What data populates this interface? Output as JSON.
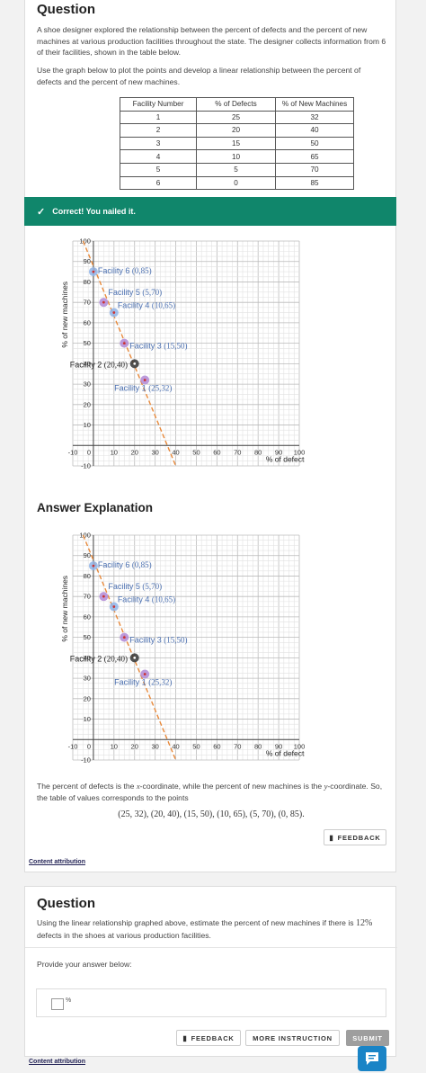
{
  "question1": {
    "heading": "Question",
    "paragraph1": "A shoe designer explored the relationship between the percent of defects and the percent of new machines at various production facilities throughout the state. The designer collects information from 6 of their facilities, shown in the table below.",
    "paragraph2": "Use the graph below to plot the points and develop a linear relationship between the percent of defects and the percent of new machines.",
    "table": {
      "headers": [
        "Facility Number",
        "% of Defects",
        "% of New Machines"
      ],
      "rows": [
        [
          "1",
          "25",
          "32"
        ],
        [
          "2",
          "20",
          "40"
        ],
        [
          "3",
          "15",
          "50"
        ],
        [
          "4",
          "10",
          "65"
        ],
        [
          "5",
          "5",
          "70"
        ],
        [
          "6",
          "0",
          "85"
        ]
      ]
    }
  },
  "banner": {
    "icon": "check-icon",
    "text": "Correct! You nailed it."
  },
  "chart_data": [
    {
      "type": "scatter",
      "xlabel": "% of defects",
      "ylabel": "% of new machines",
      "xlim": [
        -10,
        100
      ],
      "ylim": [
        -10,
        100
      ],
      "xticks": [
        -10,
        0,
        10,
        20,
        30,
        40,
        50,
        60,
        70,
        80,
        90,
        100
      ],
      "yticks": [
        -10,
        10,
        20,
        30,
        40,
        50,
        60,
        70,
        80,
        90,
        100
      ],
      "grid": true,
      "points": [
        {
          "label": "Facility 6",
          "coord": "(0,85)",
          "x": 0,
          "y": 85
        },
        {
          "label": "Facility 5",
          "coord": "(5,70)",
          "x": 5,
          "y": 70
        },
        {
          "label": "Facility 4",
          "coord": "(10,65)",
          "x": 10,
          "y": 65
        },
        {
          "label": "Facility 3",
          "coord": "(15,50)",
          "x": 15,
          "y": 50
        },
        {
          "label": "Facility 2",
          "coord": "(20,40)",
          "x": 20,
          "y": 40
        },
        {
          "label": "Facility 1",
          "coord": "(25,32)",
          "x": 25,
          "y": 32
        }
      ],
      "trend_line": {
        "x": [
          -5,
          40
        ],
        "y": [
          100,
          -10
        ]
      },
      "colors": {
        "line": "#e8893a",
        "point_blue": "#8fb4e8",
        "point_purple": "#b18ad6",
        "point_dark": "#333333",
        "label": "#4a6fb0"
      }
    },
    {
      "type": "scatter",
      "xlabel": "% of defects",
      "ylabel": "% of new machines",
      "xlim": [
        -10,
        100
      ],
      "ylim": [
        -10,
        100
      ],
      "xticks": [
        -10,
        0,
        10,
        20,
        30,
        40,
        50,
        60,
        70,
        80,
        90,
        100
      ],
      "yticks": [
        -10,
        10,
        20,
        30,
        40,
        50,
        60,
        70,
        80,
        90,
        100
      ],
      "grid": true,
      "points": [
        {
          "label": "Facility 6",
          "coord": "(0,85)",
          "x": 0,
          "y": 85
        },
        {
          "label": "Facility 5",
          "coord": "(5,70)",
          "x": 5,
          "y": 70
        },
        {
          "label": "Facility 4",
          "coord": "(10,65)",
          "x": 10,
          "y": 65
        },
        {
          "label": "Facility 3",
          "coord": "(15,50)",
          "x": 15,
          "y": 50
        },
        {
          "label": "Facility 2",
          "coord": "(20,40)",
          "x": 20,
          "y": 40
        },
        {
          "label": "Facility 1",
          "coord": "(25,32)",
          "x": 25,
          "y": 32
        }
      ],
      "trend_line": {
        "x": [
          -5,
          40
        ],
        "y": [
          100,
          -10
        ]
      },
      "colors": {
        "line": "#e8893a",
        "point_blue": "#8fb4e8",
        "point_purple": "#b18ad6",
        "point_dark": "#333333",
        "label": "#4a6fb0"
      }
    }
  ],
  "explanation": {
    "heading": "Answer Explanation",
    "text_a": "The percent of defects is the ",
    "var_x": "x",
    "text_b": "-coordinate, while the percent of new machines is the ",
    "var_y": "y",
    "text_c": "-coordinate. So, the table of values corresponds to the points",
    "points_text": "(25, 32),  (20, 40),  (15, 50),  (10, 65),  (5, 70),  (0, 85)."
  },
  "feedback_label": "FEEDBACK",
  "feedback_icon": "comment-icon",
  "content_attribution": "Content attribution",
  "question2": {
    "heading": "Question",
    "text_a": "Using the linear relationship graphed above, estimate the percent of new machines if there is ",
    "highlight": "12%",
    "text_b": " defects in the shoes at various production facilities.",
    "prompt": "Provide your answer below:",
    "unit": "%",
    "feedback_label": "FEEDBACK",
    "instruction_label": "MORE INSTRUCTION",
    "submit_label": "SUBMIT"
  },
  "chat_icon": "chat-icon"
}
